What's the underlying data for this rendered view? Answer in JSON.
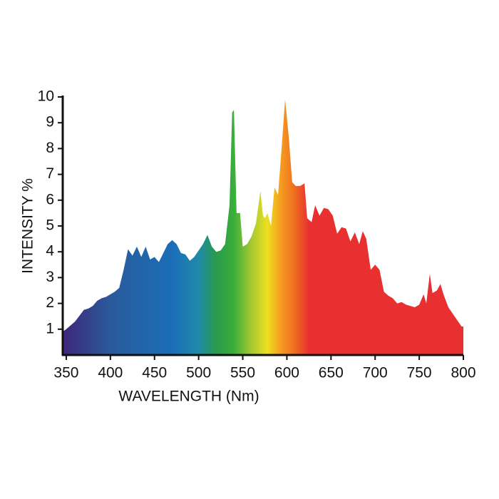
{
  "chart_data": {
    "type": "area",
    "x_label": "WAVELENGTH (Nm)",
    "y_label": "INTENSITY %",
    "x": [
      346,
      350,
      360,
      370,
      375,
      380,
      385,
      390,
      395,
      400,
      405,
      410,
      415,
      420,
      425,
      430,
      435,
      440,
      445,
      450,
      455,
      460,
      465,
      470,
      475,
      480,
      485,
      490,
      495,
      500,
      505,
      510,
      515,
      520,
      525,
      530,
      535,
      538,
      540,
      543,
      547,
      550,
      555,
      560,
      565,
      570,
      573,
      575,
      578,
      582,
      586,
      590,
      594,
      598,
      602,
      606,
      610,
      615,
      620,
      623,
      628,
      632,
      637,
      642,
      647,
      652,
      657,
      662,
      667,
      672,
      677,
      682,
      686,
      690,
      695,
      700,
      705,
      710,
      715,
      720,
      725,
      730,
      735,
      740,
      745,
      750,
      755,
      758,
      762,
      765,
      770,
      774,
      778,
      783,
      790,
      795,
      798,
      800
    ],
    "y": [
      0.9,
      1.0,
      1.3,
      1.75,
      1.8,
      1.9,
      2.1,
      2.2,
      2.25,
      2.35,
      2.45,
      2.6,
      3.3,
      4.1,
      3.85,
      4.2,
      3.8,
      4.2,
      3.7,
      3.8,
      3.6,
      3.95,
      4.3,
      4.45,
      4.3,
      3.95,
      3.9,
      3.65,
      3.8,
      4.05,
      4.3,
      4.65,
      4.2,
      4.0,
      4.05,
      4.3,
      5.8,
      9.4,
      9.5,
      5.5,
      5.5,
      4.2,
      4.3,
      4.6,
      5.1,
      6.35,
      5.4,
      5.3,
      5.5,
      5.0,
      6.5,
      6.2,
      8.0,
      9.9,
      8.5,
      6.7,
      6.55,
      6.55,
      6.65,
      5.3,
      5.15,
      5.8,
      5.4,
      5.7,
      5.65,
      5.4,
      4.7,
      4.95,
      4.9,
      4.4,
      4.75,
      4.3,
      4.8,
      4.5,
      3.3,
      3.5,
      3.3,
      2.45,
      2.3,
      2.2,
      2.0,
      2.05,
      1.95,
      1.9,
      1.85,
      1.95,
      2.35,
      2.0,
      3.15,
      2.4,
      2.5,
      2.75,
      2.3,
      1.85,
      1.5,
      1.25,
      1.1,
      1.1
    ],
    "color_stops": [
      {
        "value": 350,
        "color": "#3d2a7c"
      },
      {
        "value": 400,
        "color": "#2a5a9a"
      },
      {
        "value": 470,
        "color": "#1a6eb8"
      },
      {
        "value": 500,
        "color": "#1f8aa8"
      },
      {
        "value": 520,
        "color": "#2a9a4a"
      },
      {
        "value": 540,
        "color": "#3aae3a"
      },
      {
        "value": 560,
        "color": "#a6c830"
      },
      {
        "value": 578,
        "color": "#ede020"
      },
      {
        "value": 592,
        "color": "#f5a020"
      },
      {
        "value": 608,
        "color": "#ef7020"
      },
      {
        "value": 625,
        "color": "#e83030"
      },
      {
        "value": 800,
        "color": "#e83030"
      }
    ],
    "xlim": [
      346,
      800
    ],
    "ylim": [
      0,
      10
    ],
    "xticks": [
      350,
      400,
      450,
      500,
      550,
      600,
      650,
      700,
      750,
      800
    ],
    "yticks": [
      1,
      2,
      3,
      4,
      5,
      6,
      7,
      8,
      9,
      10
    ]
  }
}
